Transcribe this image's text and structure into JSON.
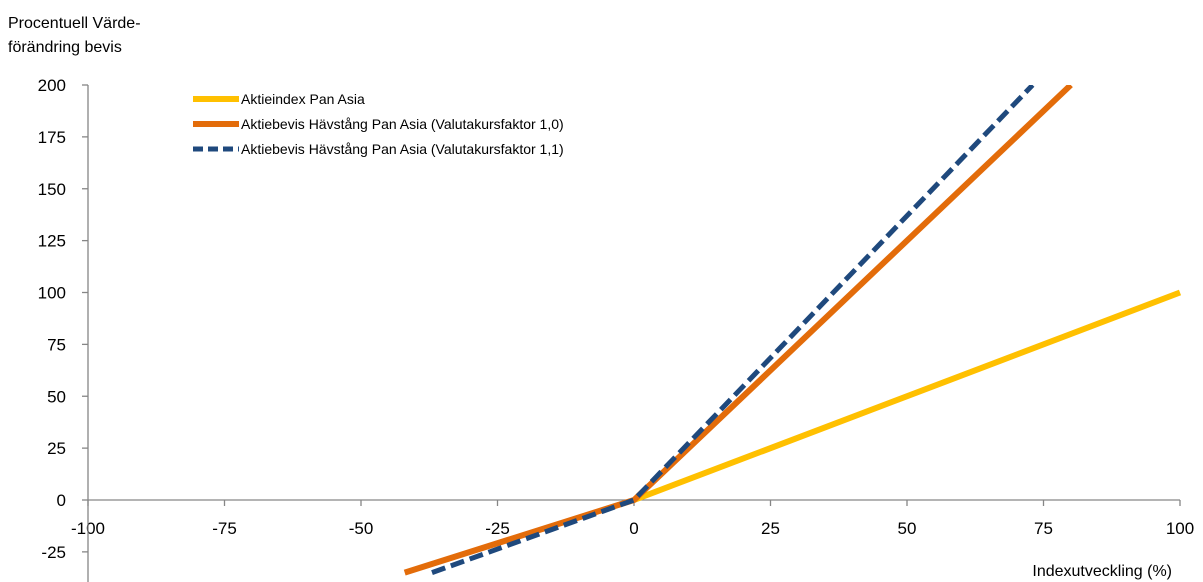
{
  "chart_data": {
    "type": "line",
    "ylabel_lines": [
      "Procentuell Värde-",
      "förändring bevis"
    ],
    "xlabel": "Indexutveckling (%)",
    "xlim": [
      -100,
      100
    ],
    "ylim": [
      -25,
      200
    ],
    "x_ticks": [
      -100,
      -75,
      -50,
      -25,
      0,
      25,
      50,
      75,
      100
    ],
    "x_tick_labels": [
      "-100",
      "-75",
      "-50",
      "-25",
      "0",
      "25",
      "50",
      "75",
      "100"
    ],
    "y_ticks": [
      200,
      175,
      150,
      125,
      100,
      75,
      50,
      25,
      0,
      -25
    ],
    "y_tick_labels": [
      "200",
      "175",
      "150",
      "125",
      "100",
      "75",
      "50",
      "25",
      "0",
      "-25"
    ],
    "grid": false,
    "legend_position": "top-left",
    "series": [
      {
        "name": "Aktieindex Pan Asia",
        "color": "#FFC000",
        "style": "solid",
        "x": [
          0,
          100
        ],
        "y": [
          0,
          100
        ]
      },
      {
        "name": "Aktiebevis Hävstång Pan Asia (Valutakursfaktor 1,0)",
        "color": "#E36C0A",
        "style": "solid",
        "x": [
          -42,
          0,
          80
        ],
        "y": [
          -35,
          0,
          200
        ]
      },
      {
        "name": "Aktiebevis Hävstång Pan Asia (Valutakursfaktor 1,1)",
        "color": "#1F497D",
        "style": "dashed",
        "x": [
          -37,
          0,
          73
        ],
        "y": [
          -35,
          0,
          200
        ]
      }
    ]
  }
}
